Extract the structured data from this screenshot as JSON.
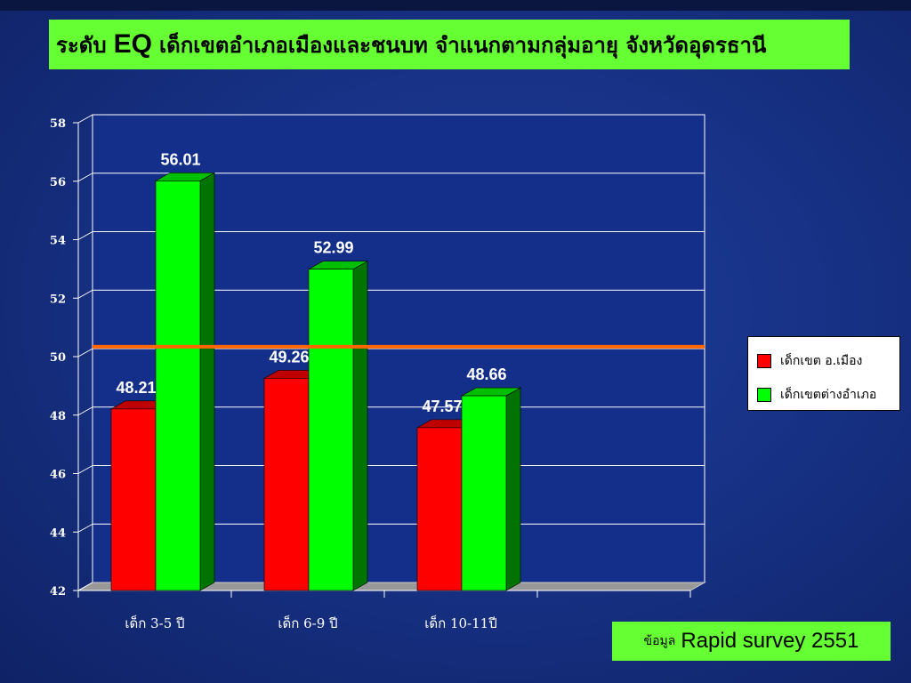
{
  "title": {
    "prefix": "ระดับ",
    "eq": "EQ",
    "rest": "เด็กเขตอำเภอเมืองและชนบท จำแนกตามกลุ่มอายุ จังหวัดอุดรธานี"
  },
  "source": {
    "label": "ข้อมูล",
    "value": "Rapid survey 2551"
  },
  "colors": {
    "series1": "#ff0000",
    "series2": "#00ff00",
    "reference_line": "#ff6600",
    "plot_background": "#142f8a",
    "grid": "#ffffff",
    "floor": "#999999"
  },
  "chart_data": {
    "type": "bar",
    "categories": [
      "เด็ก 3-5 ปี",
      "เด็ก 6-9 ปี",
      "เด็ก 10-11ปี"
    ],
    "series": [
      {
        "name": "เด็กเขต อ.เมือง",
        "values": [
          48.21,
          49.26,
          47.57
        ]
      },
      {
        "name": "เด็กเขตต่างอำเภอ",
        "values": [
          56.01,
          52.99,
          48.66
        ]
      }
    ],
    "ylim": [
      42,
      58
    ],
    "yticks": [
      42,
      44,
      46,
      48,
      50,
      52,
      54,
      56,
      58
    ],
    "reference_line": 50.2,
    "grid": true,
    "legend_position": "right",
    "style": "3d"
  }
}
